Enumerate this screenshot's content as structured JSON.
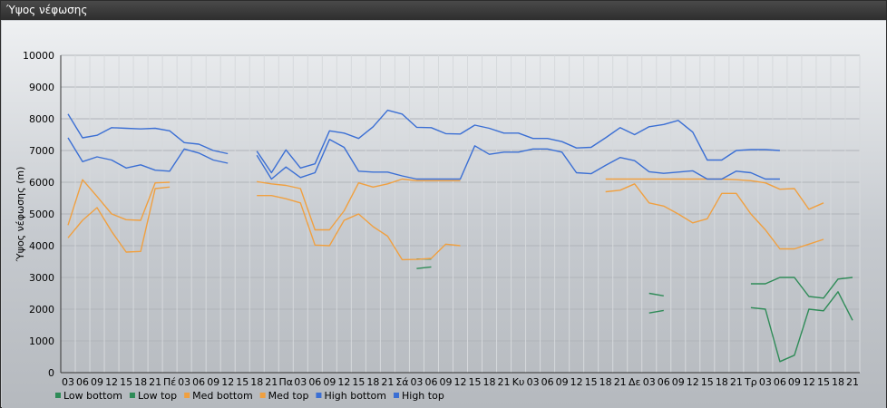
{
  "window": {
    "title": "Ύψος νέφωσης"
  },
  "chart_data": {
    "type": "line",
    "ylabel": "Ύψος νέφωσης (m)",
    "ylim": [
      0,
      10000
    ],
    "yticks": [
      0,
      1000,
      2000,
      3000,
      4000,
      5000,
      6000,
      7000,
      8000,
      9000,
      10000
    ],
    "grid": true,
    "legend_position": "bottom-left",
    "x_tick_labels": [
      "03",
      "06",
      "09",
      "12",
      "15",
      "18",
      "21",
      "Πέ",
      "03",
      "06",
      "09",
      "12",
      "15",
      "18",
      "21",
      "Πα",
      "03",
      "06",
      "09",
      "12",
      "15",
      "18",
      "21",
      "Σά",
      "03",
      "06",
      "09",
      "12",
      "15",
      "18",
      "21",
      "Κυ",
      "03",
      "06",
      "09",
      "12",
      "15",
      "18",
      "21",
      "Δε",
      "03",
      "06",
      "09",
      "12",
      "15",
      "18",
      "21",
      "Τρ",
      "03",
      "06",
      "09",
      "12",
      "15",
      "18",
      "21"
    ],
    "series": [
      {
        "name": "Low bottom",
        "color": "#2e8b57",
        "segments": [
          [
            [
              24,
              3280
            ],
            [
              25,
              3330
            ]
          ],
          [
            [
              40,
              1880
            ],
            [
              41,
              1960
            ]
          ],
          [
            [
              47,
              2050
            ],
            [
              48,
              2000
            ],
            [
              49,
              350
            ],
            [
              50,
              550
            ],
            [
              51,
              2000
            ],
            [
              52,
              1950
            ],
            [
              53,
              2550
            ],
            [
              54,
              1650
            ]
          ]
        ]
      },
      {
        "name": "Low top",
        "color": "#2e8b57",
        "segments": [
          [
            [
              24,
              3580
            ],
            [
              25,
              3580
            ]
          ],
          [
            [
              40,
              2500
            ],
            [
              41,
              2420
            ]
          ],
          [
            [
              47,
              2800
            ],
            [
              48,
              2800
            ],
            [
              49,
              3000
            ],
            [
              50,
              3000
            ],
            [
              51,
              2400
            ],
            [
              52,
              2350
            ],
            [
              53,
              2950
            ],
            [
              54,
              3000
            ]
          ]
        ]
      },
      {
        "name": "Med bottom",
        "color": "#f0a040",
        "segments": [
          [
            [
              0,
              4250
            ],
            [
              1,
              4800
            ],
            [
              2,
              5200
            ],
            [
              3,
              4450
            ],
            [
              4,
              3800
            ],
            [
              5,
              3820
            ],
            [
              6,
              5800
            ],
            [
              7,
              5850
            ]
          ],
          [
            [
              13,
              5580
            ],
            [
              14,
              5580
            ],
            [
              15,
              5480
            ],
            [
              16,
              5350
            ],
            [
              17,
              4020
            ],
            [
              18,
              4000
            ],
            [
              19,
              4800
            ],
            [
              20,
              5000
            ],
            [
              21,
              4600
            ],
            [
              22,
              4300
            ],
            [
              23,
              3560
            ],
            [
              24,
              3570
            ],
            [
              25,
              3600
            ],
            [
              26,
              4050
            ],
            [
              27,
              4000
            ]
          ],
          [
            [
              37,
              5700
            ],
            [
              38,
              5750
            ],
            [
              39,
              5950
            ],
            [
              40,
              5350
            ],
            [
              41,
              5250
            ],
            [
              42,
              5000
            ],
            [
              43,
              4720
            ],
            [
              44,
              4850
            ],
            [
              45,
              5650
            ],
            [
              46,
              5650
            ],
            [
              47,
              5000
            ],
            [
              48,
              4500
            ],
            [
              49,
              3900
            ],
            [
              50,
              3900
            ],
            [
              51,
              4050
            ],
            [
              52,
              4200
            ]
          ]
        ]
      },
      {
        "name": "Med top",
        "color": "#f0a040",
        "segments": [
          [
            [
              0,
              4650
            ],
            [
              1,
              6080
            ],
            [
              2,
              5550
            ],
            [
              3,
              5000
            ],
            [
              4,
              4820
            ],
            [
              5,
              4800
            ],
            [
              6,
              5980
            ],
            [
              7,
              6000
            ]
          ],
          [
            [
              13,
              6020
            ],
            [
              14,
              5950
            ],
            [
              15,
              5900
            ],
            [
              16,
              5800
            ],
            [
              17,
              4500
            ],
            [
              18,
              4500
            ],
            [
              19,
              5100
            ],
            [
              20,
              5980
            ],
            [
              21,
              5850
            ],
            [
              22,
              5950
            ],
            [
              23,
              6100
            ],
            [
              24,
              6050
            ],
            [
              25,
              6050
            ],
            [
              26,
              6050
            ],
            [
              27,
              6050
            ]
          ],
          [
            [
              37,
              6100
            ],
            [
              38,
              6100
            ],
            [
              39,
              6100
            ],
            [
              40,
              6100
            ],
            [
              41,
              6100
            ],
            [
              42,
              6100
            ],
            [
              43,
              6100
            ],
            [
              44,
              6100
            ],
            [
              45,
              6100
            ],
            [
              46,
              6080
            ],
            [
              47,
              6050
            ],
            [
              48,
              5980
            ],
            [
              49,
              5780
            ],
            [
              50,
              5800
            ],
            [
              51,
              5150
            ],
            [
              52,
              5350
            ]
          ]
        ]
      },
      {
        "name": "High bottom",
        "color": "#3b6fd4",
        "segments": [
          [
            [
              0,
              7400
            ],
            [
              1,
              6650
            ],
            [
              2,
              6800
            ],
            [
              3,
              6700
            ],
            [
              4,
              6450
            ],
            [
              5,
              6550
            ],
            [
              6,
              6380
            ],
            [
              7,
              6350
            ],
            [
              8,
              7050
            ],
            [
              9,
              6920
            ],
            [
              10,
              6700
            ],
            [
              11,
              6600
            ]
          ],
          [
            [
              13,
              6850
            ],
            [
              14,
              6100
            ],
            [
              15,
              6480
            ],
            [
              16,
              6150
            ],
            [
              17,
              6300
            ],
            [
              18,
              7350
            ],
            [
              19,
              7100
            ],
            [
              20,
              6350
            ],
            [
              21,
              6320
            ],
            [
              22,
              6320
            ],
            [
              23,
              6200
            ],
            [
              24,
              6100
            ],
            [
              25,
              6100
            ],
            [
              26,
              6100
            ],
            [
              27,
              6100
            ],
            [
              28,
              7150
            ],
            [
              29,
              6880
            ],
            [
              30,
              6950
            ],
            [
              31,
              6950
            ],
            [
              32,
              7050
            ],
            [
              33,
              7050
            ],
            [
              34,
              6950
            ],
            [
              35,
              6300
            ],
            [
              36,
              6270
            ],
            [
              37,
              6530
            ],
            [
              38,
              6780
            ],
            [
              39,
              6680
            ],
            [
              40,
              6330
            ],
            [
              41,
              6280
            ],
            [
              42,
              6320
            ],
            [
              43,
              6360
            ],
            [
              44,
              6100
            ],
            [
              45,
              6100
            ],
            [
              46,
              6350
            ],
            [
              47,
              6300
            ],
            [
              48,
              6100
            ],
            [
              49,
              6100
            ]
          ]
        ]
      },
      {
        "name": "High top",
        "color": "#3b6fd4",
        "segments": [
          [
            [
              0,
              8150
            ],
            [
              1,
              7400
            ],
            [
              2,
              7480
            ],
            [
              3,
              7720
            ],
            [
              4,
              7700
            ],
            [
              5,
              7680
            ],
            [
              6,
              7700
            ],
            [
              7,
              7620
            ],
            [
              8,
              7250
            ],
            [
              9,
              7200
            ],
            [
              10,
              7000
            ],
            [
              11,
              6900
            ]
          ],
          [
            [
              13,
              6980
            ],
            [
              14,
              6300
            ],
            [
              15,
              7020
            ],
            [
              16,
              6450
            ],
            [
              17,
              6580
            ],
            [
              18,
              7620
            ],
            [
              19,
              7550
            ],
            [
              20,
              7380
            ],
            [
              21,
              7750
            ],
            [
              22,
              8270
            ],
            [
              23,
              8150
            ],
            [
              24,
              7730
            ],
            [
              25,
              7720
            ],
            [
              26,
              7530
            ],
            [
              27,
              7520
            ],
            [
              28,
              7800
            ],
            [
              29,
              7700
            ],
            [
              30,
              7550
            ],
            [
              31,
              7550
            ],
            [
              32,
              7380
            ],
            [
              33,
              7380
            ],
            [
              34,
              7280
            ],
            [
              35,
              7080
            ],
            [
              36,
              7100
            ],
            [
              37,
              7400
            ],
            [
              38,
              7720
            ],
            [
              39,
              7500
            ],
            [
              40,
              7750
            ],
            [
              41,
              7820
            ],
            [
              42,
              7950
            ],
            [
              43,
              7580
            ],
            [
              44,
              6700
            ],
            [
              45,
              6700
            ],
            [
              46,
              7000
            ],
            [
              47,
              7030
            ],
            [
              48,
              7030
            ],
            [
              49,
              7000
            ]
          ]
        ]
      }
    ]
  }
}
